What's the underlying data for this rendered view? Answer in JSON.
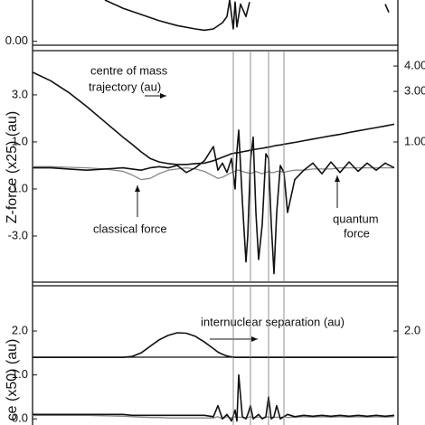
{
  "chart_data": [
    {
      "type": "line",
      "x": [
        80,
        100,
        120,
        140,
        160,
        180,
        190,
        200,
        210,
        215,
        218,
        222,
        224,
        226,
        230,
        236,
        240,
        260,
        390,
        394
      ],
      "xlim": [
        0,
        404
      ],
      "ylim": [
        -0.05,
        1
      ],
      "yticks": [
        {
          "value": 0,
          "label": "0.00"
        }
      ],
      "series": [
        {
          "name": null,
          "color": "#111",
          "values": [
            1,
            0.8,
            0.65,
            0.5,
            0.38,
            0.3,
            0.27,
            0.3,
            0.45,
            0.6,
            1.0,
            0.3,
            0.95,
            0.35,
            0.9,
            0.6,
            0.95,
            null,
            0.9,
            0.7
          ]
        }
      ]
    },
    {
      "type": "line",
      "ylabel": "Z-force (x25) (au)",
      "x": [
        0,
        20,
        40,
        60,
        80,
        100,
        110,
        120,
        130,
        140,
        150,
        160,
        170,
        180,
        190,
        200,
        205,
        210,
        215,
        220,
        224,
        226,
        228,
        232,
        236,
        238,
        241,
        244,
        247,
        250,
        254,
        258,
        261,
        264,
        267,
        270,
        274,
        278,
        282,
        290,
        300,
        310,
        320,
        330,
        340,
        350,
        360,
        370,
        380,
        390,
        400
      ],
      "xlim": [
        0,
        404
      ],
      "ylim": [
        -4.96,
        4.88
      ],
      "yticks": [
        {
          "value": 3,
          "label": "3.0"
        },
        {
          "value": 1,
          "label": "1.0"
        },
        {
          "value": -1,
          "label": "-1.0"
        },
        {
          "value": -3,
          "label": "-3.0"
        }
      ],
      "y2lim": [
        -4.54,
        4.61
      ],
      "y2ticks": [
        {
          "value": 4,
          "label": "4.00"
        },
        {
          "value": 3,
          "label": "3.00"
        },
        {
          "value": 1,
          "label": "1.00"
        }
      ],
      "vlines": [
        222,
        241,
        261,
        278
      ],
      "annotations": [
        "centre of mass",
        "trajectory (au)",
        "classical force",
        "quantum",
        "force"
      ],
      "series": [
        {
          "name": "centre of mass trajectory",
          "color": "#111",
          "values": [
            3.96,
            3.6,
            3.1,
            2.5,
            1.85,
            1.2,
            0.9,
            0.58,
            0.3,
            0.15,
            0.08,
            0.04,
            0.04,
            0.08,
            0.1,
            0.2,
            0.27,
            0.35,
            0.42,
            0.5,
            0.53,
            0.54,
            0.55,
            0.58,
            0.61,
            0.62,
            0.65,
            0.67,
            0.69,
            0.71,
            0.73,
            0.76,
            0.78,
            0.8,
            0.83,
            0.85,
            0.87,
            0.9,
            0.93,
            0.98,
            1.05,
            1.12,
            1.19,
            1.26,
            1.32,
            1.4,
            1.47,
            1.54,
            1.61,
            1.68,
            1.75
          ]
        },
        {
          "name": "classical force",
          "color": "#888",
          "values": [
            -0.05,
            -0.05,
            -0.08,
            -0.1,
            -0.15,
            -0.25,
            -0.4,
            -0.6,
            -0.55,
            -0.35,
            -0.2,
            -0.15,
            -0.1,
            -0.15,
            -0.25,
            -0.45,
            -0.55,
            -0.5,
            -0.4,
            -0.3,
            -0.25,
            -0.2,
            -0.2,
            -0.25,
            -0.3,
            -0.3,
            -0.35,
            -0.3,
            -0.25,
            -0.3,
            -0.35,
            -0.3,
            -0.25,
            -0.3,
            -0.3,
            -0.25,
            -0.25,
            -0.3,
            -0.25,
            -0.2,
            -0.2,
            -0.15,
            -0.15,
            -0.15,
            -0.1,
            -0.1,
            -0.1,
            -0.1,
            -0.1,
            -0.1,
            -0.1
          ]
        },
        {
          "name": "quantum force",
          "color": "#111",
          "values": [
            -0.1,
            -0.1,
            -0.15,
            -0.2,
            -0.15,
            -0.1,
            -0.15,
            -0.2,
            -0.1,
            -0.05,
            -0.1,
            0.0,
            -0.3,
            -0.1,
            0.2,
            0.8,
            -0.2,
            0.1,
            -0.3,
            0.3,
            -1.0,
            0.6,
            1.5,
            -1.5,
            -4.1,
            -3.0,
            0.2,
            1.2,
            -2.0,
            -4.0,
            -2.5,
            0.5,
            0.3,
            -2.5,
            -4.6,
            -2.0,
            0.0,
            -0.3,
            -2.0,
            -0.6,
            -0.2,
            0.1,
            -0.35,
            0.15,
            -0.3,
            0.15,
            -0.25,
            0.1,
            -0.2,
            0.1,
            -0.1
          ]
        }
      ]
    },
    {
      "type": "line",
      "ylabel": "ce (x50) (au)",
      "x": [
        0,
        20,
        40,
        60,
        80,
        100,
        110,
        120,
        130,
        140,
        150,
        160,
        170,
        180,
        190,
        200,
        205,
        210,
        215,
        220,
        224,
        226,
        228,
        232,
        236,
        238,
        241,
        244,
        247,
        250,
        254,
        258,
        261,
        264,
        267,
        270,
        274,
        278,
        282,
        290,
        300,
        310,
        320,
        330,
        340,
        350,
        360,
        370,
        380,
        390,
        400
      ],
      "xlim": [
        0,
        404
      ],
      "ylim": [
        -0.14,
        3.03
      ],
      "yticks": [
        {
          "value": 2,
          "label": "2.0"
        },
        {
          "value": 1,
          "label": "1.0"
        },
        {
          "value": 0,
          "label": "0.0"
        }
      ],
      "y2ticks": [
        {
          "value": 2,
          "label": "2.0"
        }
      ],
      "vlines": [
        222,
        241,
        261,
        278
      ],
      "annotations": [
        "internuclear separation (au)"
      ],
      "series": [
        {
          "name": "internuclear separation",
          "color": "#111",
          "values": [
            1.4,
            1.4,
            1.4,
            1.4,
            1.4,
            1.4,
            1.42,
            1.5,
            1.65,
            1.8,
            1.9,
            1.96,
            1.95,
            1.88,
            1.75,
            1.6,
            1.52,
            1.47,
            1.43,
            1.41,
            1.4,
            1.4,
            1.4,
            1.4,
            1.4,
            1.4,
            1.4,
            1.4,
            1.4,
            1.4,
            1.4,
            1.4,
            1.4,
            1.4,
            1.4,
            1.4,
            1.4,
            1.4,
            1.4,
            1.4,
            1.4,
            1.4,
            1.4,
            1.4,
            1.4,
            1.4,
            1.4,
            1.4,
            1.4,
            1.4,
            1.4
          ]
        },
        {
          "name": "classical force",
          "color": "#888",
          "values": [
            0.08,
            0.08,
            0.08,
            0.08,
            0.07,
            0.06,
            0.05,
            0.04,
            0.03,
            0.03,
            0.02,
            0.02,
            0.02,
            0.02,
            0.02,
            0.02,
            0.05,
            0.0,
            0.05,
            0.02,
            0.05,
            0.02,
            0.04,
            0.03,
            0.02,
            0.03,
            0.05,
            0.02,
            0.03,
            0.04,
            0.02,
            0.03,
            0.05,
            0.02,
            0.03,
            0.04,
            0.03,
            0.05,
            0.03,
            0.04,
            0.05,
            0.04,
            0.05,
            0.04,
            0.05,
            0.04,
            0.05,
            0.04,
            0.05,
            0.04,
            0.05
          ]
        },
        {
          "name": "quantum force",
          "color": "#111",
          "values": [
            0.1,
            0.1,
            0.1,
            0.1,
            0.1,
            0.1,
            0.08,
            0.08,
            0.08,
            0.08,
            0.08,
            0.08,
            0.08,
            0.08,
            0.08,
            0.05,
            0.3,
            0.0,
            0.1,
            -0.05,
            0.2,
            -0.05,
            1.0,
            0.05,
            0.0,
            0.1,
            0.3,
            0.0,
            0.05,
            0.1,
            0.0,
            0.05,
            0.5,
            0.0,
            0.05,
            0.3,
            0.0,
            0.05,
            0.1,
            0.05,
            0.08,
            0.06,
            0.08,
            0.06,
            0.08,
            0.06,
            0.08,
            0.06,
            0.08,
            0.06,
            0.08
          ]
        }
      ]
    }
  ]
}
